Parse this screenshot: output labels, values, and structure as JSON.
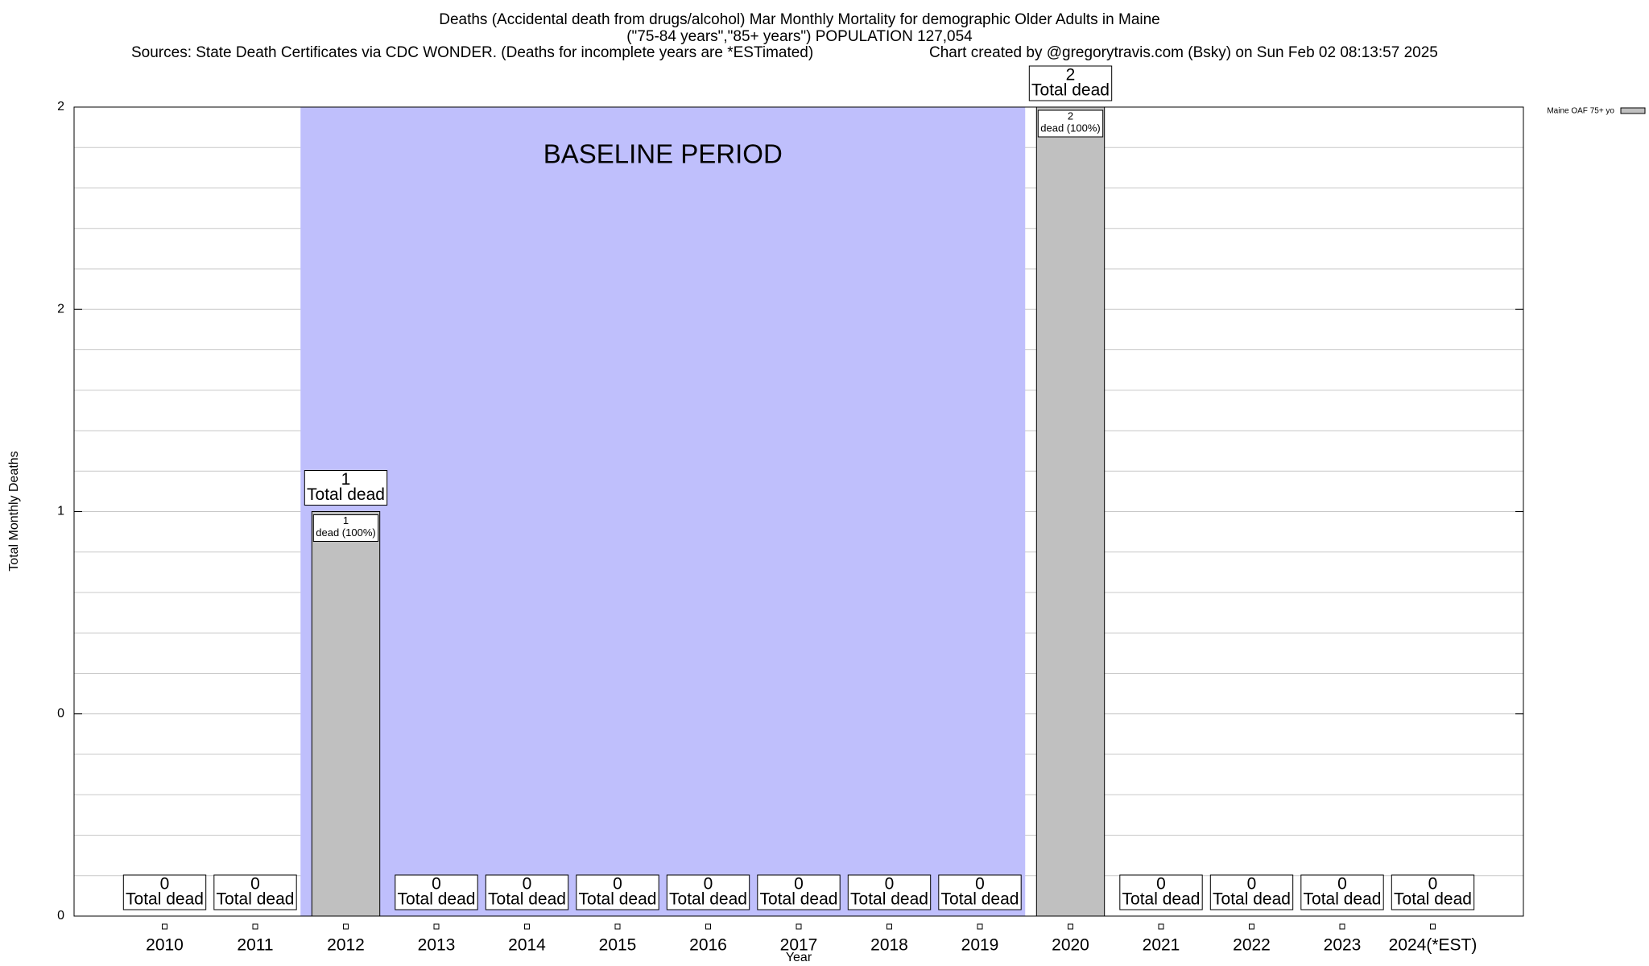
{
  "chart_data": {
    "type": "bar",
    "title": "Deaths (Accidental death from drugs/alcohol) Mar Monthly Mortality for demographic Older Adults in Maine",
    "subtitle": "(\"75-84 years\",\"85+ years\") POPULATION 127,054",
    "source": "Sources: State Death Certificates via CDC WONDER. (Deaths for incomplete years are *ESTimated)",
    "credit": "Chart created by @gregorytravis.com (Bsky) on Sun Feb 02 08:13:57 2025",
    "x_label": "Year",
    "y_label": "Total Monthly Deaths",
    "categories": [
      "2010",
      "2011",
      "2012",
      "2013",
      "2014",
      "2015",
      "2016",
      "2017",
      "2018",
      "2019",
      "2020",
      "2021",
      "2022",
      "2023",
      "2024(*EST)"
    ],
    "series": [
      {
        "name": "Maine OAF 75+ yo",
        "color": "#c0c0c0",
        "values": [
          0,
          0,
          1,
          0,
          0,
          0,
          0,
          0,
          0,
          0,
          2,
          0,
          0,
          0,
          0
        ]
      }
    ],
    "total_label": "Total dead",
    "inner_label": "dead (100%)",
    "baseline": {
      "label": "BASELINE PERIOD",
      "from": "2012",
      "to": "2019",
      "color": "#bfbffc"
    },
    "ylim": [
      0,
      2
    ],
    "yticks": [
      0,
      {
        "value": 0.5,
        "label": "0"
      },
      1,
      {
        "value": 1.5,
        "label": "2"
      },
      2
    ],
    "minor_yticks": [
      0.1,
      0.2,
      0.3,
      0.4,
      0.6,
      0.7,
      0.8,
      0.9,
      1.1,
      1.2,
      1.3,
      1.4,
      1.6,
      1.7,
      1.8,
      1.9
    ],
    "grid": true,
    "legend": "top-right"
  }
}
